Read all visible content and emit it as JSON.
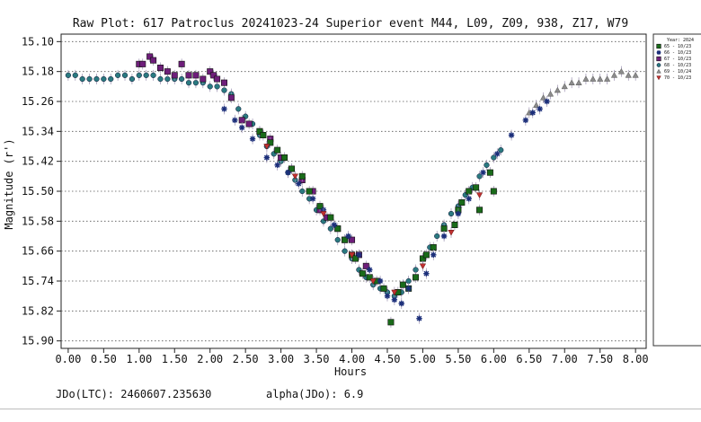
{
  "chart_data": {
    "type": "scatter",
    "title": "Raw Plot: 617 Patroclus 20241023-24 Superior event M44, L09, Z09, 938, Z17, W79",
    "xlabel": "Hours",
    "ylabel": "Magnitude (r')",
    "xlim": [
      -0.1,
      8.15
    ],
    "ylim": [
      15.08,
      15.92
    ],
    "y_inverted": true,
    "grid": "horizontal dotted",
    "xticks": [
      "0.00",
      "0.50",
      "1.00",
      "1.50",
      "2.00",
      "2.50",
      "3.00",
      "3.50",
      "4.00",
      "4.50",
      "5.00",
      "5.50",
      "6.00",
      "6.50",
      "7.00",
      "7.50",
      "8.00"
    ],
    "yticks": [
      "15.10",
      "15.18",
      "15.26",
      "15.34",
      "15.42",
      "15.50",
      "15.58",
      "15.66",
      "15.74",
      "15.82",
      "15.90"
    ],
    "legend": {
      "position": "right",
      "title": "Year: 2024",
      "entries": [
        {
          "label": "65 - 10/23",
          "marker": "square-green"
        },
        {
          "label": "66 - 10/23",
          "marker": "asterisk-navy"
        },
        {
          "label": "67 - 10/23",
          "marker": "square-purple"
        },
        {
          "label": "68 - 10/23",
          "marker": "circle-teal"
        },
        {
          "label": "69 - 10/24",
          "marker": "triangle-gray"
        },
        {
          "label": "70 - 10/23",
          "marker": "triangle-down-red"
        }
      ]
    },
    "series": [
      {
        "name": "65 - 10/23",
        "color": "#1a6b1a",
        "marker": "square",
        "x": [
          2.7,
          2.75,
          2.85,
          2.95,
          3.05,
          3.15,
          3.3,
          3.4,
          3.55,
          3.7,
          3.8,
          3.9,
          4.0,
          4.05,
          4.15,
          4.25,
          4.35,
          4.45,
          4.55,
          4.65,
          4.72,
          4.8,
          4.9,
          5.0,
          5.05,
          5.15,
          5.3,
          5.45,
          5.5,
          5.55,
          5.65,
          5.75,
          5.8,
          5.95,
          6.0
        ],
        "y": [
          15.34,
          15.35,
          15.37,
          15.39,
          15.41,
          15.44,
          15.46,
          15.5,
          15.54,
          15.57,
          15.6,
          15.63,
          15.67,
          15.68,
          15.72,
          15.73,
          15.74,
          15.76,
          15.85,
          15.77,
          15.75,
          15.76,
          15.73,
          15.68,
          15.67,
          15.65,
          15.6,
          15.59,
          15.55,
          15.53,
          15.5,
          15.49,
          15.55,
          15.45,
          15.5
        ]
      },
      {
        "name": "66 - 10/23",
        "color": "#1c2f7a",
        "marker": "asterisk",
        "x": [
          2.2,
          2.35,
          2.45,
          2.6,
          2.8,
          2.95,
          3.1,
          3.25,
          3.45,
          3.6,
          3.75,
          3.95,
          4.1,
          4.25,
          4.4,
          4.5,
          4.6,
          4.7,
          4.8,
          4.95,
          5.05,
          5.15,
          5.3,
          5.5,
          5.65,
          5.85,
          6.05,
          6.25,
          6.45,
          6.55,
          6.65,
          6.75
        ],
        "y": [
          15.28,
          15.31,
          15.33,
          15.36,
          15.41,
          15.43,
          15.45,
          15.48,
          15.52,
          15.55,
          15.59,
          15.62,
          15.67,
          15.71,
          15.74,
          15.78,
          15.79,
          15.8,
          15.76,
          15.84,
          15.72,
          15.67,
          15.62,
          15.56,
          15.52,
          15.45,
          15.4,
          15.35,
          15.31,
          15.29,
          15.28,
          15.26
        ]
      },
      {
        "name": "67 - 10/23",
        "color": "#6e1e7a",
        "marker": "square",
        "x": [
          1.0,
          1.05,
          1.15,
          1.2,
          1.3,
          1.4,
          1.5,
          1.6,
          1.7,
          1.8,
          1.9,
          2.0,
          2.05,
          2.1,
          2.2,
          2.3,
          2.45,
          2.55,
          2.7,
          2.85,
          3.0,
          3.15,
          3.3,
          3.45,
          3.55,
          3.65,
          3.8,
          3.9,
          4.0,
          4.1,
          4.2
        ],
        "y": [
          15.16,
          15.16,
          15.14,
          15.15,
          15.17,
          15.18,
          15.19,
          15.16,
          15.19,
          15.19,
          15.2,
          15.18,
          15.19,
          15.2,
          15.21,
          15.25,
          15.31,
          15.32,
          15.34,
          15.36,
          15.41,
          15.44,
          15.47,
          15.5,
          15.55,
          15.57,
          15.6,
          15.63,
          15.63,
          15.67,
          15.7
        ]
      },
      {
        "name": "68 - 10/23",
        "color": "#2a7a80",
        "marker": "circle",
        "x": [
          0.0,
          0.1,
          0.2,
          0.3,
          0.4,
          0.5,
          0.6,
          0.7,
          0.8,
          0.9,
          1.0,
          1.1,
          1.2,
          1.3,
          1.4,
          1.5,
          1.6,
          1.7,
          1.8,
          1.9,
          2.0,
          2.1,
          2.2,
          2.3,
          2.4,
          2.5,
          2.6,
          2.7,
          2.8,
          2.9,
          3.0,
          3.1,
          3.2,
          3.3,
          3.4,
          3.5,
          3.6,
          3.7,
          3.8,
          3.9,
          4.0,
          4.1,
          4.2,
          4.3,
          4.4,
          4.5,
          4.6,
          4.7,
          4.8,
          4.9,
          5.0,
          5.1,
          5.2,
          5.3,
          5.4,
          5.5,
          5.6,
          5.7,
          5.8,
          5.9,
          6.0,
          6.1
        ],
        "y": [
          15.19,
          15.19,
          15.2,
          15.2,
          15.2,
          15.2,
          15.2,
          15.19,
          15.19,
          15.2,
          15.19,
          15.19,
          15.19,
          15.2,
          15.2,
          15.2,
          15.2,
          15.21,
          15.21,
          15.21,
          15.22,
          15.22,
          15.23,
          15.24,
          15.28,
          15.3,
          15.32,
          15.35,
          15.38,
          15.4,
          15.42,
          15.45,
          15.47,
          15.5,
          15.52,
          15.55,
          15.58,
          15.6,
          15.63,
          15.66,
          15.68,
          15.71,
          15.73,
          15.75,
          15.76,
          15.77,
          15.78,
          15.77,
          15.74,
          15.71,
          15.68,
          15.65,
          15.62,
          15.59,
          15.56,
          15.54,
          15.51,
          15.49,
          15.46,
          15.43,
          15.41,
          15.39
        ]
      },
      {
        "name": "69 - 10/24",
        "color": "#8c8c8c",
        "marker": "triangle",
        "x": [
          6.5,
          6.6,
          6.7,
          6.8,
          6.9,
          7.0,
          7.1,
          7.2,
          7.3,
          7.4,
          7.5,
          7.6,
          7.7,
          7.8,
          7.9,
          8.0
        ],
        "y": [
          15.29,
          15.27,
          15.25,
          15.24,
          15.23,
          15.22,
          15.21,
          15.21,
          15.2,
          15.2,
          15.2,
          15.2,
          15.19,
          15.18,
          15.19,
          15.19
        ]
      },
      {
        "name": "70 - 10/23",
        "color": "#c03030",
        "marker": "triangle-down",
        "x": [
          2.8,
          3.2,
          3.6,
          4.0,
          4.3,
          4.6,
          5.0,
          5.4,
          5.8
        ],
        "y": [
          15.38,
          15.46,
          15.56,
          15.67,
          15.74,
          15.77,
          15.7,
          15.61,
          15.51
        ]
      }
    ]
  },
  "footer": {
    "jdo_label": "JDo(LTC): 2460607.235630",
    "alpha_label": "alpha(JDo): 6.9"
  }
}
